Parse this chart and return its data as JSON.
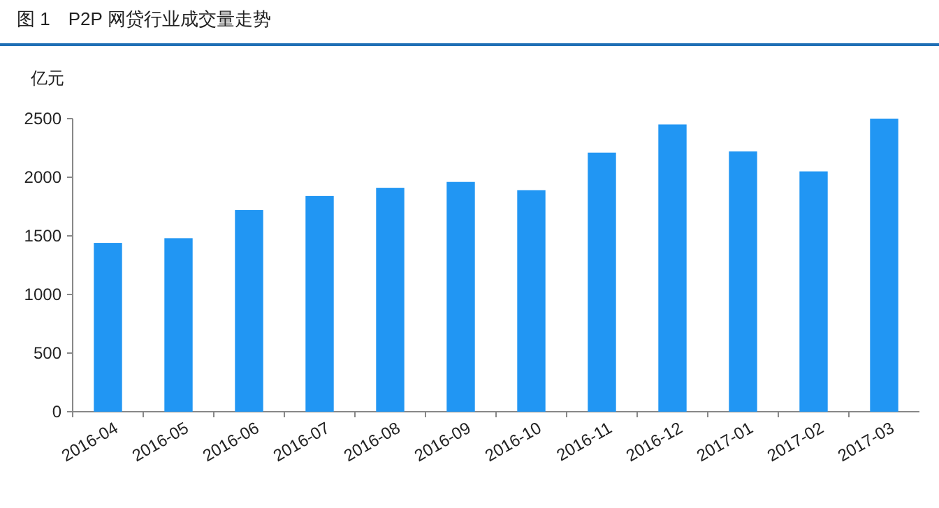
{
  "chart_data": {
    "type": "bar",
    "title": "图 1　P2P 网贷行业成交量走势",
    "ylabel": "亿元",
    "categories": [
      "2016-04",
      "2016-05",
      "2016-06",
      "2016-07",
      "2016-08",
      "2016-09",
      "2016-10",
      "2016-11",
      "2016-12",
      "2017-01",
      "2017-02",
      "2017-03"
    ],
    "values": [
      1440,
      1480,
      1720,
      1840,
      1910,
      1960,
      1890,
      2210,
      2450,
      2220,
      2050,
      2500
    ],
    "color": "#2196f3",
    "ylim": [
      0,
      2500
    ],
    "yticks": [
      0,
      500,
      1000,
      1500,
      2000,
      2500
    ]
  }
}
